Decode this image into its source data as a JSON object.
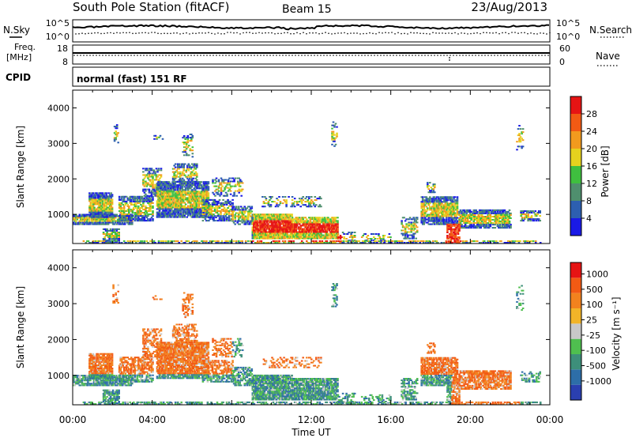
{
  "header": {
    "station": "South Pole Station (fitACF)",
    "beam": "Beam 15",
    "date": "23/Aug/2013"
  },
  "nsky_panel": {
    "left_label": "N.Sky",
    "right_label": "N.Search",
    "left_ticks": [
      "10^5",
      "10^0"
    ],
    "right_ticks": [
      "10^5",
      "10^0"
    ]
  },
  "freq_panel": {
    "left_label_1": "Freq.",
    "left_label_2": "[MHz]",
    "right_label": "Nave",
    "left_ticks": [
      "18",
      "8"
    ],
    "right_ticks": [
      "60",
      "0"
    ]
  },
  "cpid_panel": {
    "label": "CPID",
    "text": "normal (fast) 151 RF"
  },
  "chart_data": [
    {
      "type": "heatmap",
      "ylabel": "Slant Range [km]",
      "ylim": [
        180,
        4500
      ],
      "yticks": [
        "1000",
        "2000",
        "3000",
        "4000"
      ],
      "xlim": [
        0,
        24
      ],
      "colorbar": {
        "label": "Power [dB]",
        "ticks": [
          "4",
          "8",
          "12",
          "16",
          "20",
          "24",
          "28"
        ],
        "colors": [
          "#1a1ae6",
          "#2d5fb0",
          "#4f8f6e",
          "#3fbf3f",
          "#e6d21e",
          "#f29a1e",
          "#f25a14",
          "#e61414"
        ]
      }
    },
    {
      "type": "heatmap",
      "ylabel": "Slant Range [km]",
      "ylim": [
        180,
        4500
      ],
      "yticks": [
        "1000",
        "2000",
        "3000",
        "4000"
      ],
      "xlim": [
        0,
        24
      ],
      "xlabel": "Time UT",
      "xticks": [
        "00:00",
        "04:00",
        "08:00",
        "12:00",
        "16:00",
        "20:00",
        "00:00"
      ],
      "colorbar": {
        "label": "Velocity [m s⁻¹]",
        "ticks": [
          "1000",
          "500",
          "100",
          "25",
          "-25",
          "-100",
          "-500",
          "-1000"
        ],
        "colors": [
          "#2a3fb0",
          "#2d6ea8",
          "#3d8f7a",
          "#4fbf4f",
          "#c8c8c8",
          "#f2b428",
          "#f2821e",
          "#f25a14",
          "#e61414"
        ]
      }
    }
  ]
}
